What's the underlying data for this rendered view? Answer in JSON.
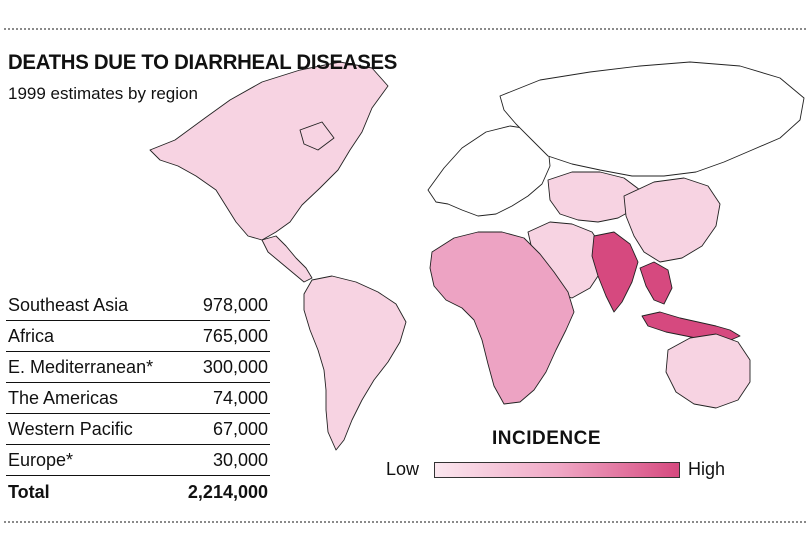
{
  "title": "DEATHS DUE TO DIARRHEAL DISEASES",
  "subtitle": "1999 estimates by region",
  "table": {
    "rows": [
      {
        "region": "Southeast Asia",
        "deaths": "978,000"
      },
      {
        "region": "Africa",
        "deaths": "765,000"
      },
      {
        "region": "E. Mediterranean*",
        "deaths": "300,000"
      },
      {
        "region": "The Americas",
        "deaths": "74,000"
      },
      {
        "region": "Western Pacific",
        "deaths": "67,000"
      },
      {
        "region": "Europe*",
        "deaths": "30,000"
      }
    ],
    "total_label": "Total",
    "total_value": "2,214,000"
  },
  "legend": {
    "title": "INCIDENCE",
    "low_label": "Low",
    "high_label": "High",
    "colors": {
      "none": "#ffffff",
      "low": "#f7d3e2",
      "medium": "#eda3c3",
      "high": "#d6497f",
      "border": "#222222"
    }
  },
  "regions": [
    {
      "name": "North America",
      "incidence": "low"
    },
    {
      "name": "Central America",
      "incidence": "low"
    },
    {
      "name": "South America",
      "incidence": "low"
    },
    {
      "name": "Europe",
      "incidence": "none"
    },
    {
      "name": "Russia",
      "incidence": "none"
    },
    {
      "name": "Middle East",
      "incidence": "low"
    },
    {
      "name": "Central Asia",
      "incidence": "low"
    },
    {
      "name": "China",
      "incidence": "low"
    },
    {
      "name": "Africa",
      "incidence": "medium"
    },
    {
      "name": "India",
      "incidence": "high"
    },
    {
      "name": "Southeast Asia",
      "incidence": "high"
    },
    {
      "name": "Indonesia",
      "incidence": "high"
    },
    {
      "name": "Australia",
      "incidence": "low"
    }
  ]
}
